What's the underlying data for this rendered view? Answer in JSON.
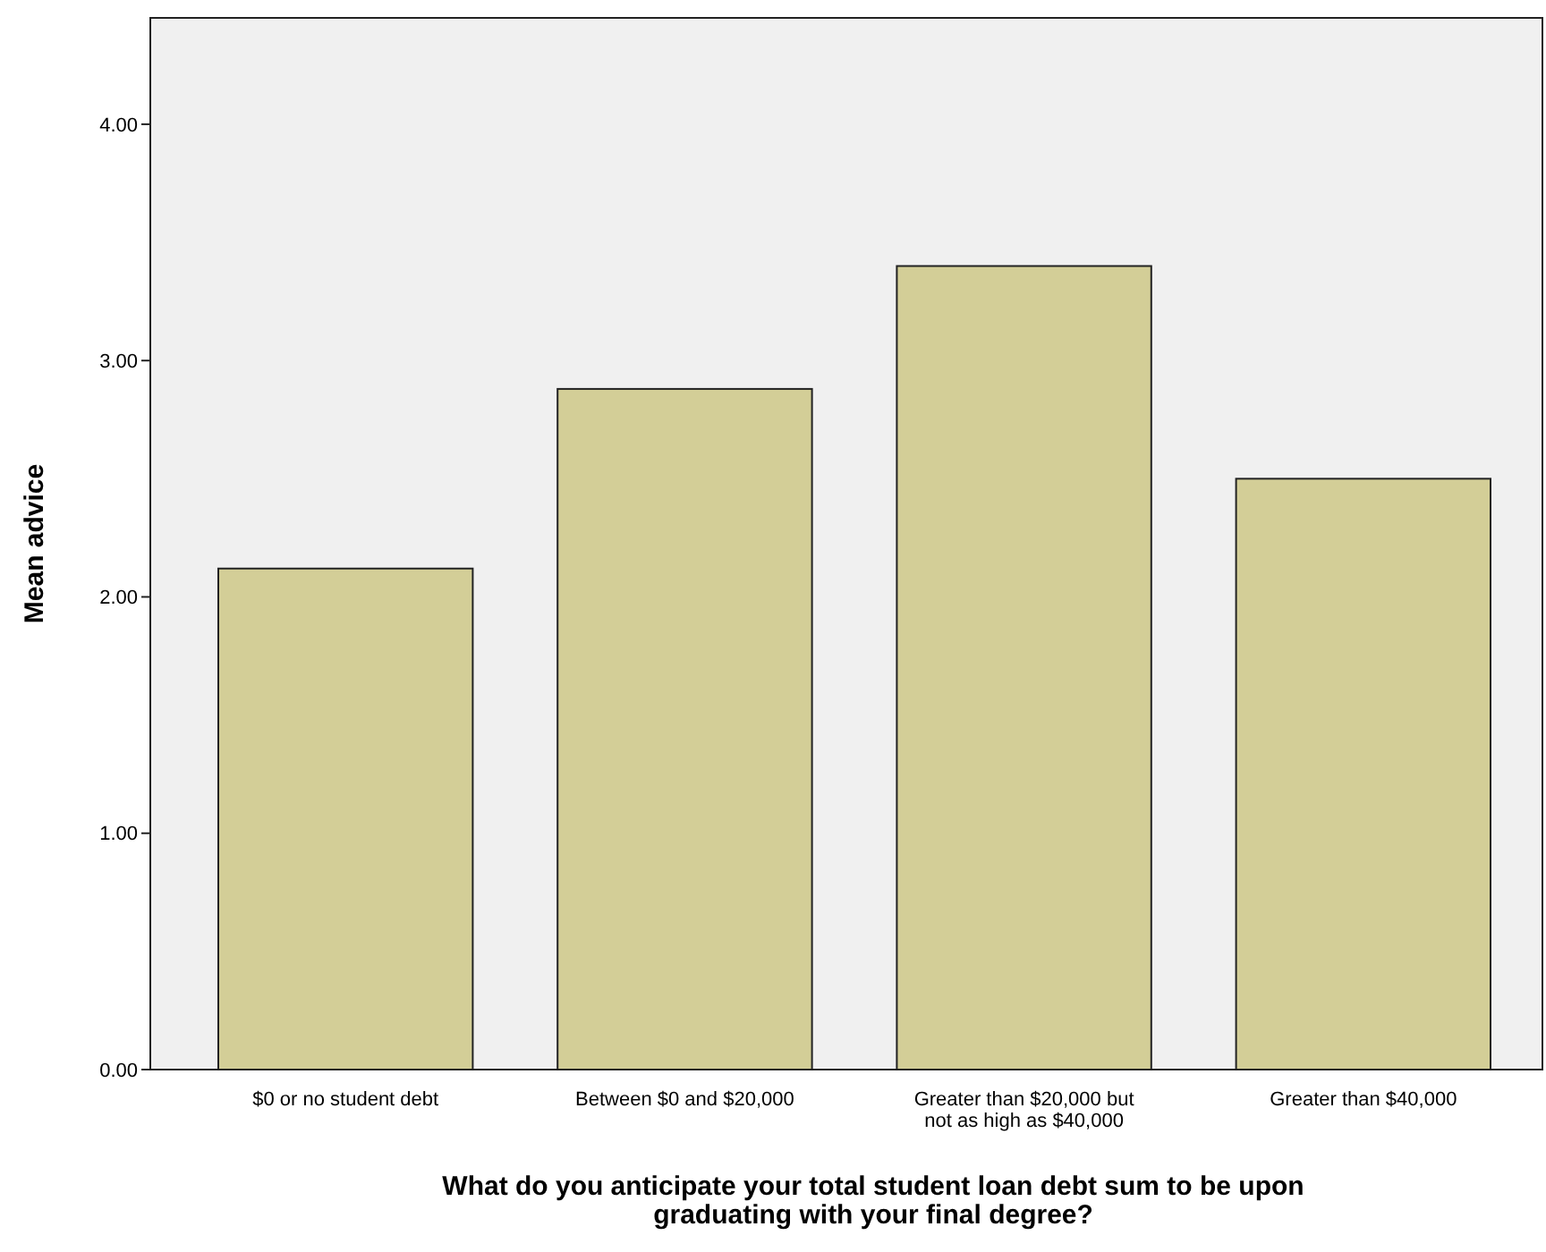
{
  "chart_data": {
    "type": "bar",
    "xlabel": "What do you anticipate your total student loan debt sum to be upon graduating with your final degree?",
    "ylabel": "Mean advice",
    "categories": [
      "$0 or no student debt",
      "Between $0 and $20,000",
      "Greater than $20,000 but not as high as $40,000",
      "Greater than $40,000"
    ],
    "values": [
      2.12,
      2.88,
      3.4,
      2.5
    ],
    "color": "#d3ce97",
    "ylim": [
      0,
      4.45
    ],
    "yticks": [
      {
        "value": 0,
        "label": "0.00"
      },
      {
        "value": 1,
        "label": "1.00"
      },
      {
        "value": 2,
        "label": "2.00"
      },
      {
        "value": 3,
        "label": "3.00"
      },
      {
        "value": 4,
        "label": "4.00"
      }
    ],
    "grid": false
  }
}
